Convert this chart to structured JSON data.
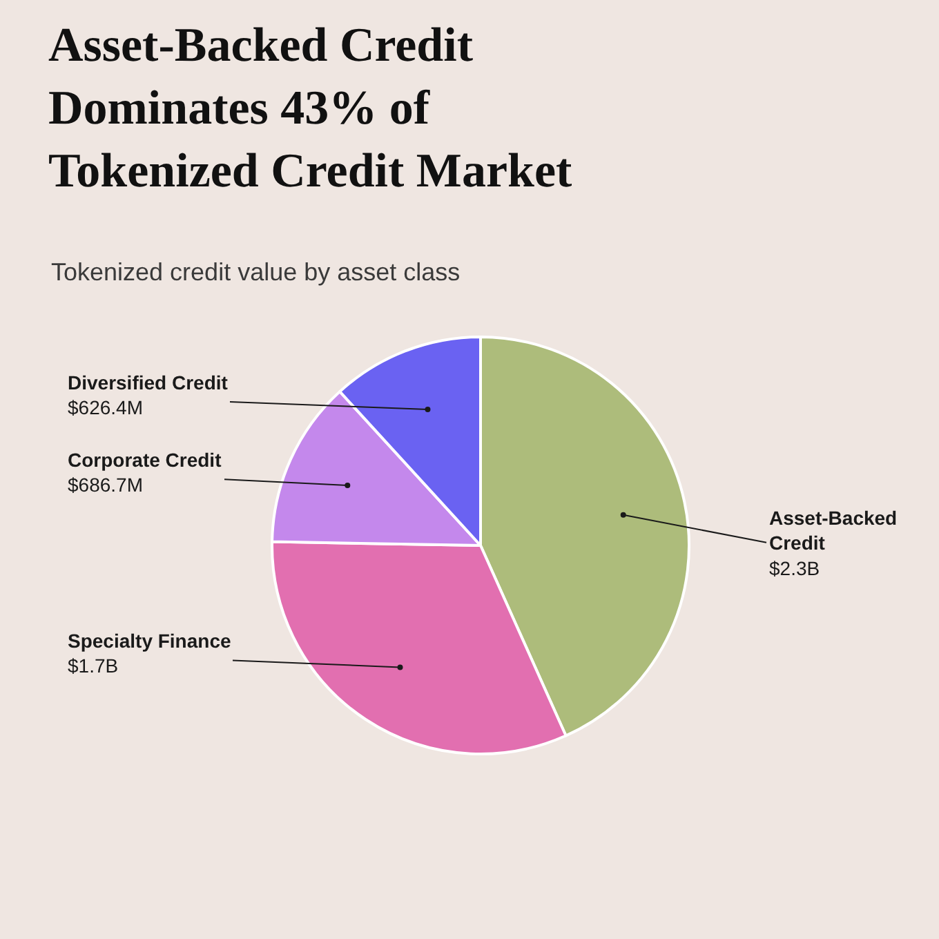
{
  "chart_data": {
    "type": "pie",
    "title": "Asset-Backed Credit Dominates 43% of Tokenized Credit Market",
    "subtitle": "Tokenized credit value by asset class",
    "categories": [
      "Asset-Backed Credit",
      "Specialty Finance",
      "Corporate Credit",
      "Diversified Credit"
    ],
    "values": [
      2300000000,
      1700000000,
      686700000,
      626400000
    ],
    "colors": [
      "#adbc7b",
      "#e26fb0",
      "#c488ec",
      "#6a62f2"
    ],
    "value_labels": [
      "$2.3B",
      "$1.7B",
      "$686.7M",
      "$626.4M"
    ]
  }
}
